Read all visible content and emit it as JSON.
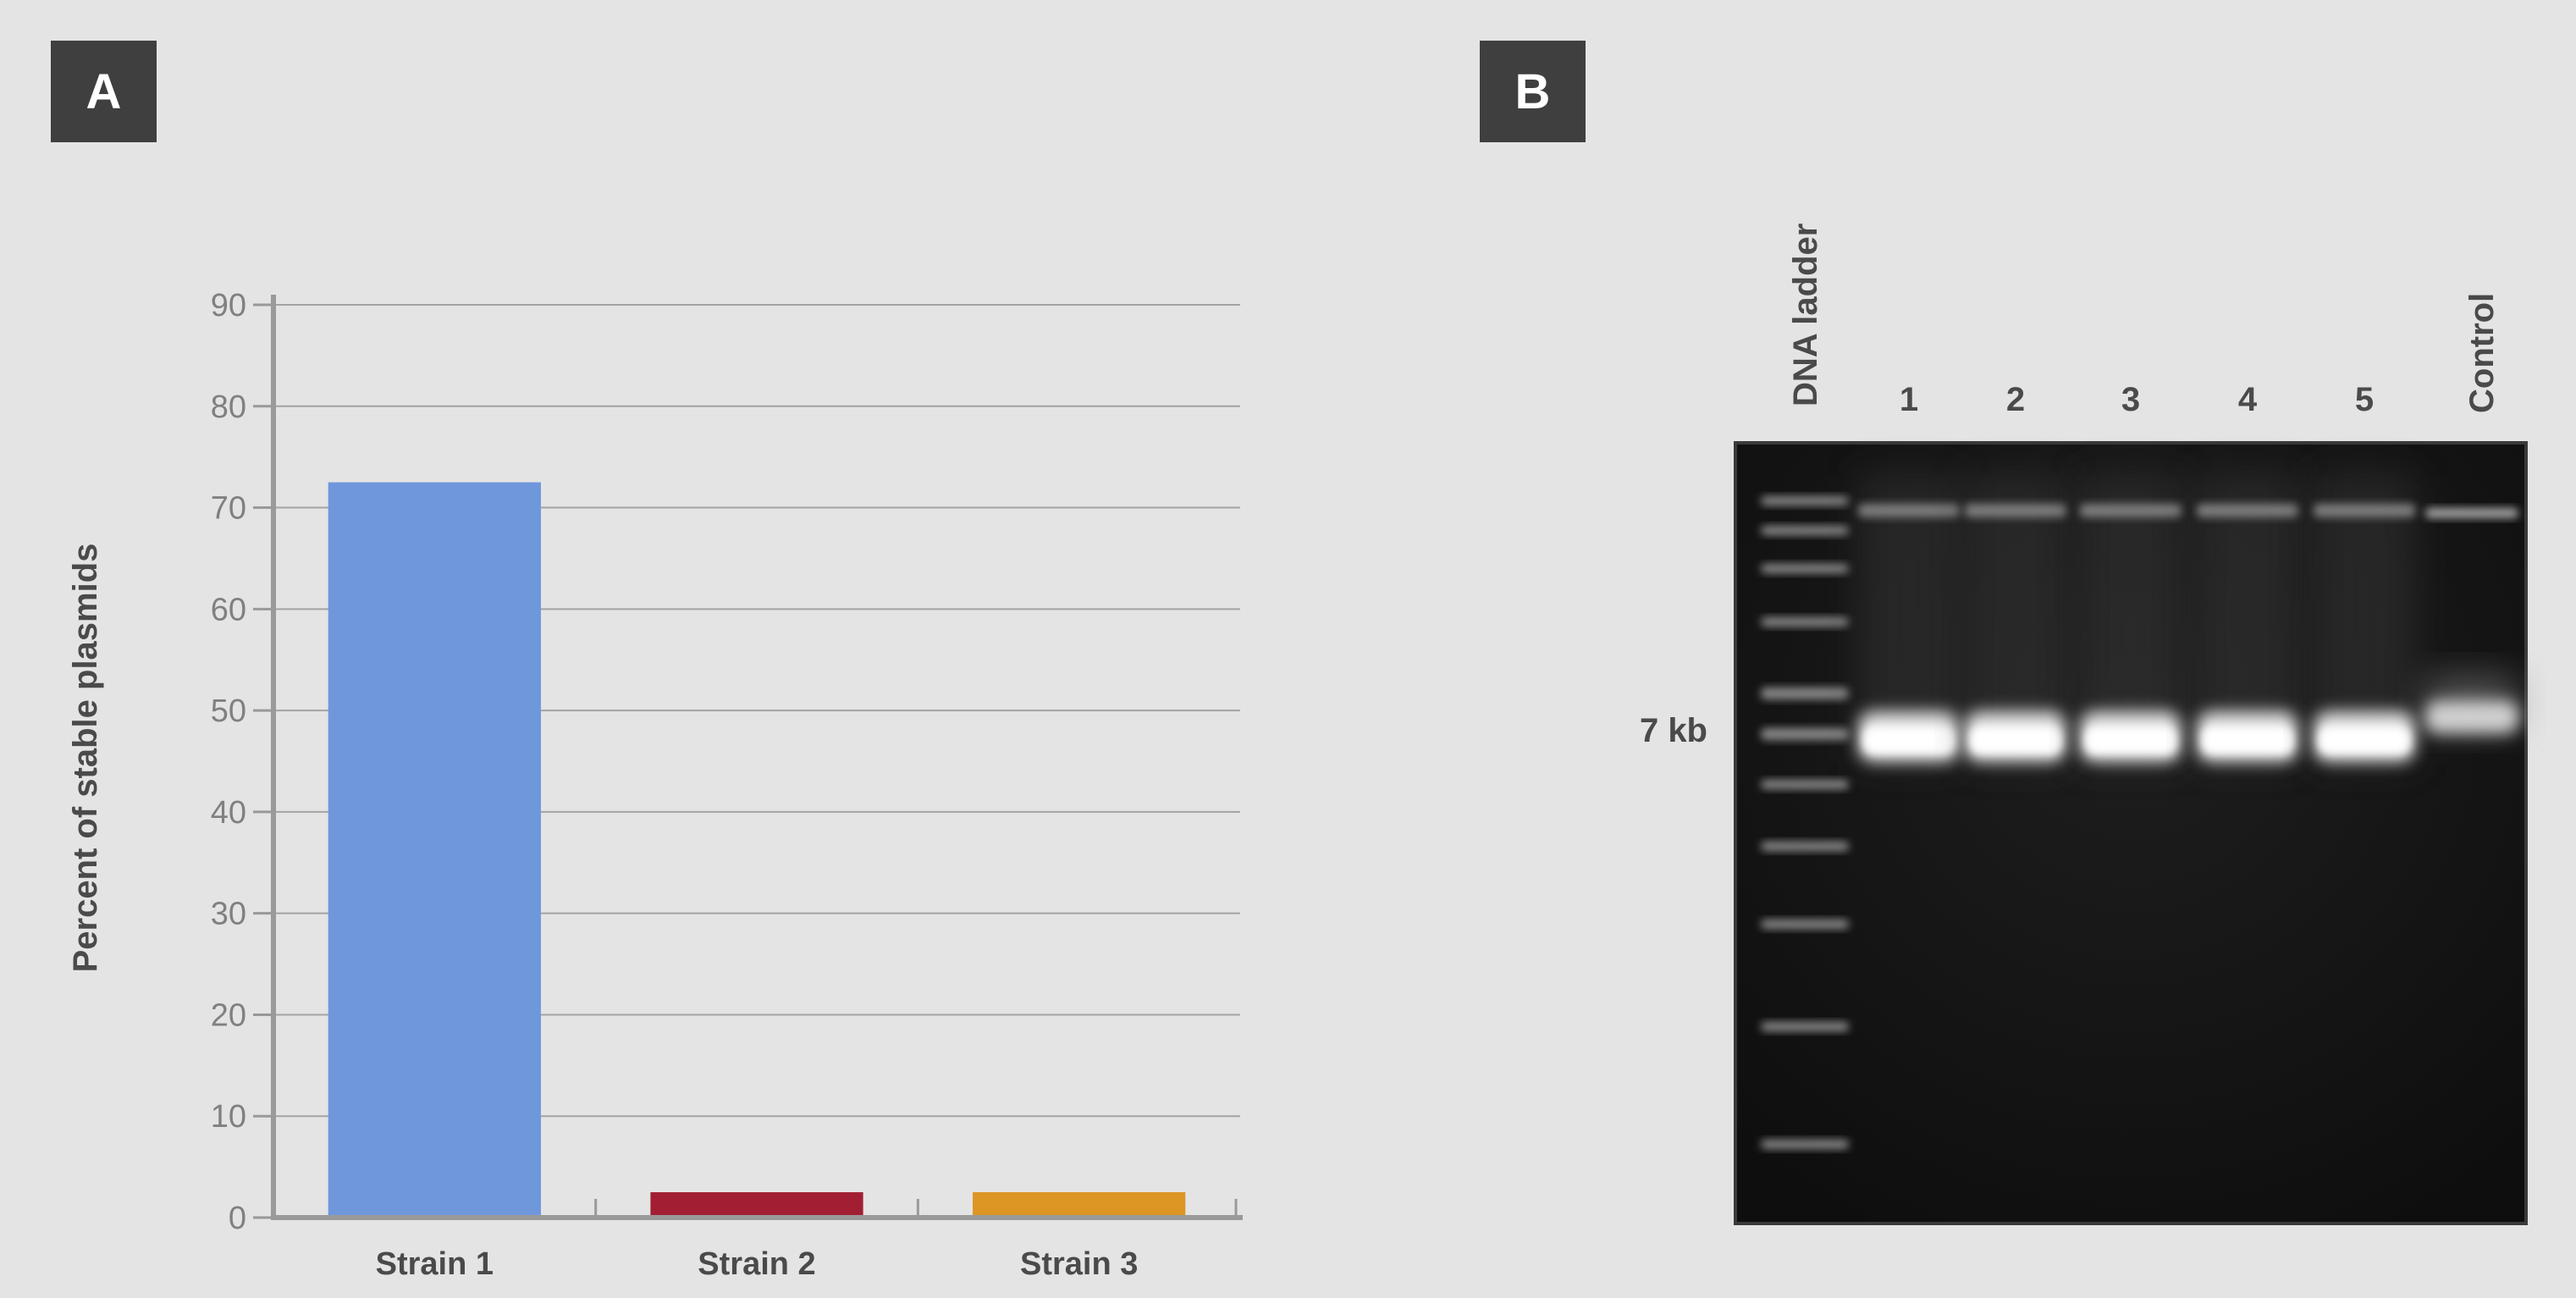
{
  "panels": {
    "a_label": "A",
    "b_label": "B"
  },
  "chart_data": {
    "type": "bar",
    "categories": [
      "Strain 1",
      "Strain 2",
      "Strain 3"
    ],
    "values": [
      72.5,
      2.5,
      2.5
    ],
    "colors": [
      "#6f97db",
      "#a21f33",
      "#dd9523"
    ],
    "title": "",
    "xlabel": "",
    "ylabel": "Percent of stable plasmids",
    "ylim": [
      0,
      90
    ],
    "yticks": [
      0,
      10,
      20,
      30,
      40,
      50,
      60,
      70,
      80,
      90
    ],
    "grid": true,
    "legend": "none"
  },
  "gel": {
    "ladder_label": "DNA ladder",
    "lane_labels": [
      "1",
      "2",
      "3",
      "4",
      "5"
    ],
    "control_label": "Control",
    "size_marker_label": "7 kb"
  },
  "colors": {
    "background": "#e4e4e4",
    "panel_label_bg": "#3f3f3f",
    "gel_bg": "#141414"
  }
}
